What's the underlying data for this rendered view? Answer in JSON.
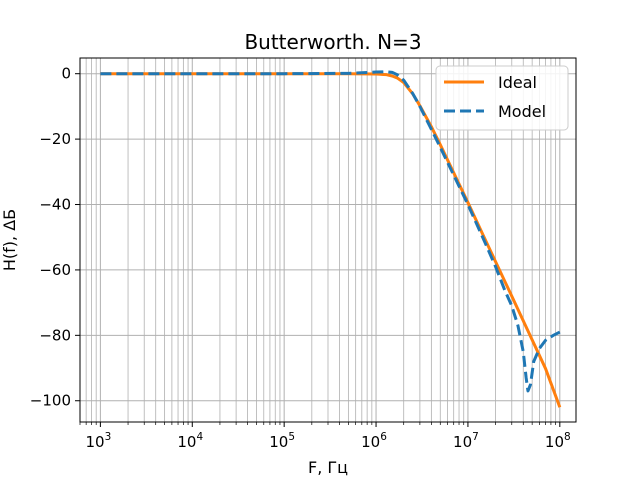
{
  "chart_data": {
    "type": "line",
    "title": "Butterworth. N=3",
    "xlabel": "F, Гц",
    "ylabel": "H(f), ΔБ",
    "x_scale": "log",
    "xlim": [
      600,
      150000000
    ],
    "ylim": [
      -106.5,
      4.8
    ],
    "x_ticks": [
      {
        "value": 1000,
        "base": "10",
        "exp": "3"
      },
      {
        "value": 10000,
        "base": "10",
        "exp": "4"
      },
      {
        "value": 100000,
        "base": "10",
        "exp": "5"
      },
      {
        "value": 1000000,
        "base": "10",
        "exp": "6"
      },
      {
        "value": 10000000,
        "base": "10",
        "exp": "7"
      },
      {
        "value": 100000000,
        "base": "10",
        "exp": "8"
      }
    ],
    "y_ticks": [
      {
        "value": 0,
        "label": "0"
      },
      {
        "value": -20,
        "label": "−20"
      },
      {
        "value": -40,
        "label": "−40"
      },
      {
        "value": -60,
        "label": "−60"
      },
      {
        "value": -80,
        "label": "−80"
      },
      {
        "value": -100,
        "label": "−100"
      }
    ],
    "grid": "major and minor",
    "legend_position": "top-right",
    "series": [
      {
        "name": "Ideal",
        "color": "#ff7f0e",
        "style": "solid",
        "points": [
          [
            1000,
            0
          ],
          [
            10000,
            0
          ],
          [
            100000,
            0
          ],
          [
            500000,
            0
          ],
          [
            1000000,
            -0.1
          ],
          [
            1300000,
            -0.3
          ],
          [
            1500000,
            -0.7
          ],
          [
            1700000,
            -1.3
          ],
          [
            2000000,
            -2.7
          ],
          [
            2500000,
            -6.1
          ],
          [
            3000000,
            -9.8
          ],
          [
            4000000,
            -16.2
          ],
          [
            5000000,
            -21.7
          ],
          [
            7000000,
            -30.3
          ],
          [
            10000000,
            -39.4
          ],
          [
            15000000,
            -50.0
          ],
          [
            20000000,
            -57.5
          ],
          [
            30000000,
            -68.0
          ],
          [
            50000000,
            -81.4
          ],
          [
            70000000,
            -90.2
          ],
          [
            100000000,
            -102.0
          ]
        ]
      },
      {
        "name": "Model",
        "color": "#1f77b4",
        "style": "dashed",
        "points": [
          [
            1000,
            0
          ],
          [
            10000,
            0
          ],
          [
            100000,
            0
          ],
          [
            500000,
            0.1
          ],
          [
            1000000,
            0.5
          ],
          [
            1300000,
            0.6
          ],
          [
            1500000,
            0.4
          ],
          [
            1700000,
            -0.3
          ],
          [
            2000000,
            -2.0
          ],
          [
            2500000,
            -6.0
          ],
          [
            3000000,
            -10.0
          ],
          [
            4000000,
            -17.0
          ],
          [
            5000000,
            -22.5
          ],
          [
            7000000,
            -31.0
          ],
          [
            10000000,
            -40.0
          ],
          [
            15000000,
            -51.0
          ],
          [
            20000000,
            -59.0
          ],
          [
            25000000,
            -66.0
          ],
          [
            30000000,
            -71.0
          ],
          [
            35000000,
            -77.0
          ],
          [
            40000000,
            -85.0
          ],
          [
            43000000,
            -93.0
          ],
          [
            45000000,
            -97.0
          ],
          [
            48000000,
            -95.0
          ],
          [
            52000000,
            -88.0
          ],
          [
            60000000,
            -84.0
          ],
          [
            70000000,
            -81.5
          ],
          [
            85000000,
            -80.0
          ],
          [
            100000000,
            -79.0
          ]
        ]
      }
    ]
  }
}
